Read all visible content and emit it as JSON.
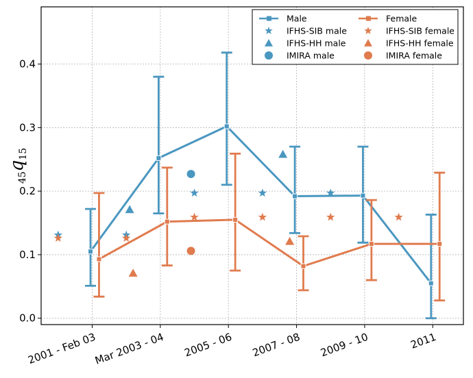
{
  "chart_data": {
    "type": "line",
    "title": "",
    "xlabel": "",
    "ylabel": {
      "prefix": "45",
      "main": "q",
      "sub": "15"
    },
    "categories": [
      "2001 - Feb 03",
      "Mar 2003 - 04",
      "2005 - 06",
      "2007 - 08",
      "2009 - 10",
      "2011"
    ],
    "ylim": [
      -0.01,
      0.49
    ],
    "yticks": [
      0.0,
      0.1,
      0.2,
      0.3,
      0.4
    ],
    "ytick_labels": [
      "0.0",
      "0.1",
      "0.2",
      "0.3",
      "0.4"
    ],
    "grid": true,
    "legend_position": "top-right",
    "colors": {
      "male": "#4a97c0",
      "female": "#e07b4e"
    },
    "series": [
      {
        "name": "Male",
        "group": "male",
        "kind": "line-errorbar",
        "x": [
          -0.05,
          1.95,
          3.95,
          5.95,
          7.95,
          9.95
        ],
        "y": [
          0.105,
          0.252,
          0.302,
          0.192,
          0.193,
          0.055
        ],
        "lower": [
          0.051,
          0.165,
          0.21,
          0.134,
          0.119,
          0.0
        ],
        "upper": [
          0.172,
          0.38,
          0.418,
          0.27,
          0.27,
          0.163
        ]
      },
      {
        "name": "Female",
        "group": "female",
        "kind": "line-errorbar",
        "x": [
          0.2,
          2.2,
          4.2,
          6.2,
          8.2,
          10.2
        ],
        "y": [
          0.093,
          0.152,
          0.155,
          0.082,
          0.117,
          0.117
        ],
        "lower": [
          0.034,
          0.083,
          0.075,
          0.044,
          0.06,
          0.028
        ],
        "upper": [
          0.197,
          0.237,
          0.259,
          0.129,
          0.186,
          0.229
        ]
      },
      {
        "name": "IFHS-SIB male",
        "group": "male",
        "kind": "star",
        "x": [
          -1.0,
          1.0,
          3.0,
          5.0,
          7.0
        ],
        "y": [
          0.131,
          0.131,
          0.197,
          0.197,
          0.197
        ],
        "x2": [
          3.0,
          5.0,
          7.0
        ]
      },
      {
        "name": "IFHS-HH male",
        "group": "male",
        "kind": "triangle",
        "x": [
          1.1,
          5.6
        ],
        "y": [
          0.171,
          0.258
        ]
      },
      {
        "name": "IMIRA male",
        "group": "male",
        "kind": "circle",
        "x": [
          2.9
        ],
        "y": [
          0.227
        ]
      },
      {
        "name": "IFHS-SIB female",
        "group": "female",
        "kind": "star",
        "x": [
          -1.0,
          1.0,
          3.0,
          5.0,
          7.0,
          9.0
        ],
        "y": [
          0.126,
          0.126,
          0.159,
          0.159,
          0.159,
          0.159
        ]
      },
      {
        "name": "IFHS-HH female",
        "group": "female",
        "kind": "triangle",
        "x": [
          1.2,
          5.8
        ],
        "y": [
          0.071,
          0.121
        ]
      },
      {
        "name": "IMIRA female",
        "group": "female",
        "kind": "circle",
        "x": [
          2.9
        ],
        "y": [
          0.106
        ]
      }
    ]
  }
}
